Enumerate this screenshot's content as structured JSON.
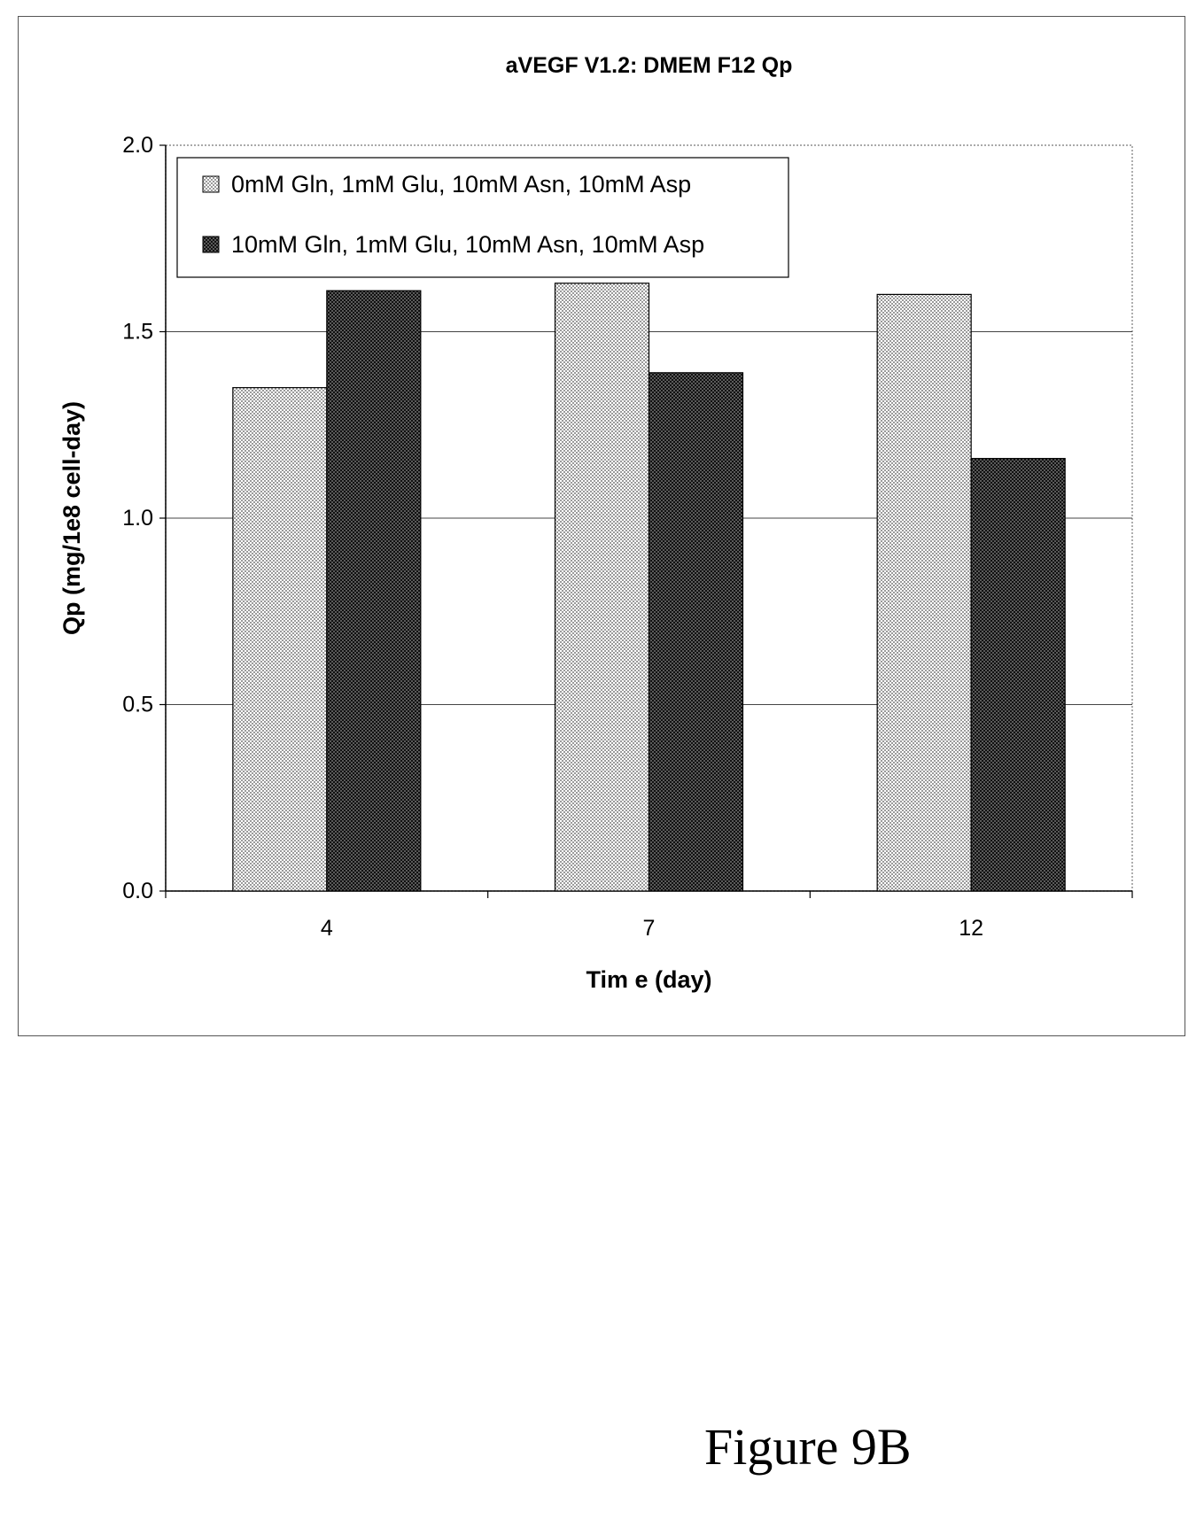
{
  "figure_label": "Figure 9B",
  "chart_data": {
    "type": "bar",
    "title": "aVEGF V1.2: DMEM F12 Qp",
    "xlabel": "Tim e (day)",
    "ylabel": "Qp (mg/1e8 cell-day)",
    "categories": [
      "4",
      "7",
      "12"
    ],
    "ylim": [
      0,
      2.0
    ],
    "yticks": [
      "0.0",
      "0.5",
      "1.0",
      "1.5",
      "2.0"
    ],
    "grid": true,
    "legend_position": "top-left",
    "series": [
      {
        "name": "0mM Gln, 1mM Glu, 10mM Asn, 10mM Asp",
        "values": [
          1.35,
          1.63,
          1.6
        ],
        "pattern": "light-dotted",
        "color": "#cccccc"
      },
      {
        "name": "10mM Gln, 1mM Glu, 10mM Asn, 10mM Asp",
        "values": [
          1.61,
          1.39,
          1.16
        ],
        "pattern": "dark-dotted",
        "color": "#2e2e2e"
      }
    ]
  }
}
